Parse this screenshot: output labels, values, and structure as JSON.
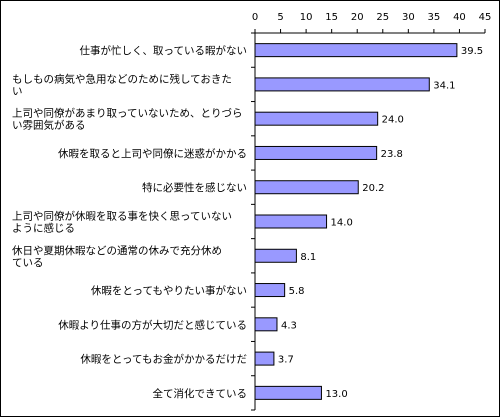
{
  "chart_data": {
    "type": "bar",
    "orientation": "horizontal",
    "categories": [
      [
        "仕事が忙しく、取っている暇がない"
      ],
      [
        "もしもの病気や急用などのために残しておきた",
        "い"
      ],
      [
        "上司や同僚があまり取っていないため、とりづら",
        "い雰囲気がある"
      ],
      [
        "休暇を取ると上司や同僚に迷惑がかかる"
      ],
      [
        "特に必要性を感じない"
      ],
      [
        "上司や同僚が休暇を取る事を快く思っていない",
        "ように感じる"
      ],
      [
        "休日や夏期休暇などの通常の休みで充分休め",
        "ている"
      ],
      [
        "休暇をとってもやりたい事がない"
      ],
      [
        "休暇より仕事の方が大切だと感じている"
      ],
      [
        "休暇をとってもお金がかかるだけだ"
      ],
      [
        "全て消化できている"
      ]
    ],
    "values": [
      39.5,
      34.1,
      24.0,
      23.8,
      20.2,
      14.0,
      8.1,
      5.8,
      4.3,
      3.7,
      13.0
    ],
    "value_labels": [
      "39.5",
      "34.1",
      "24.0",
      "23.8",
      "20.2",
      "14.0",
      "8.1",
      "5.8",
      "4.3",
      "3.7",
      "13.0"
    ],
    "xlim": [
      0,
      45
    ],
    "xticks": [
      0,
      5,
      10,
      15,
      20,
      25,
      30,
      35,
      40,
      45
    ],
    "xtick_labels": [
      "0",
      "5",
      "10",
      "15",
      "20",
      "25",
      "30",
      "35",
      "40",
      "45"
    ],
    "axis_position": "top",
    "grid": false,
    "bar_color": "#9999ff",
    "bar_edge_color": "#000000",
    "title": "",
    "xlabel": "",
    "ylabel": ""
  }
}
